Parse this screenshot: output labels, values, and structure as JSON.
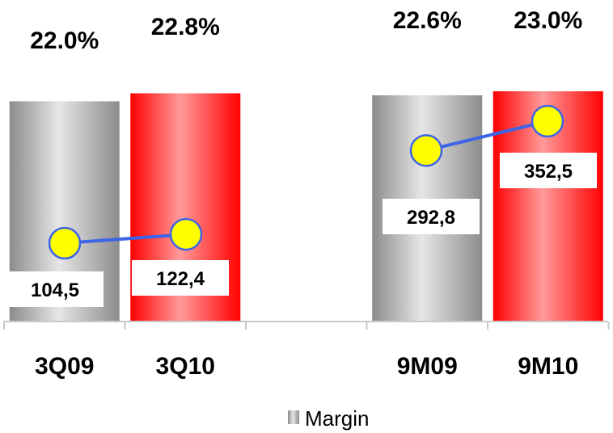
{
  "chart_data": {
    "type": "bar",
    "categories": [
      "3Q09",
      "3Q10",
      "",
      "9M09",
      "9M10"
    ],
    "series": [
      {
        "name": "Margin",
        "values": [
          22.0,
          22.8,
          null,
          22.6,
          23.0
        ],
        "labels": [
          "22.0%",
          "22.8%",
          "",
          "22.6%",
          "23.0%"
        ]
      },
      {
        "values": [
          104.5,
          122.4,
          null,
          292.8,
          352.5
        ],
        "labels": [
          "104,5",
          "122,4",
          "",
          "292,8",
          "352,5"
        ]
      }
    ],
    "legend": {
      "position": "bottom",
      "entries": [
        "Margin"
      ]
    },
    "colors": {
      "prior_period": "#a8a8a8",
      "current_period": "#ff1a1a",
      "line": "#3c64e6",
      "marker": "#ffff00"
    }
  }
}
